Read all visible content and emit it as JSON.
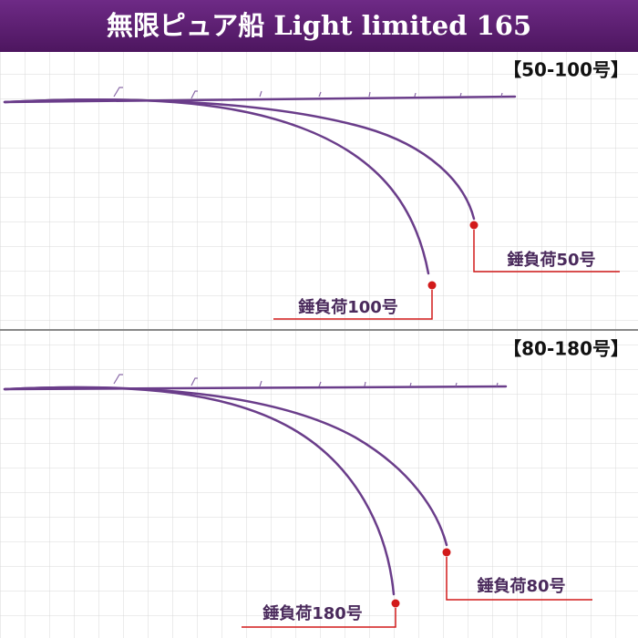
{
  "header": {
    "title": "無限ピュア船 Light limited 165"
  },
  "panels": [
    {
      "range": "【50-100号】",
      "loads": [
        "錘負荷50号",
        "錘負荷100号"
      ]
    },
    {
      "range": "【80-180号】",
      "loads": [
        "錘負荷80号",
        "錘負荷180号"
      ]
    }
  ]
}
